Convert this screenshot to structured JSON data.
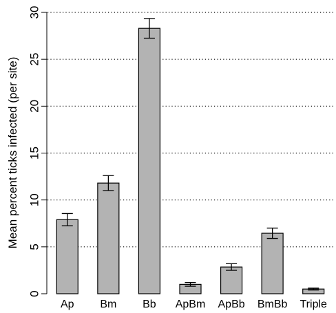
{
  "chart_data": {
    "type": "bar",
    "categories": [
      "Ap",
      "Bm",
      "Bb",
      "ApBm",
      "ApBb",
      "BmBb",
      "Triple"
    ],
    "values": [
      7.9,
      11.8,
      28.3,
      1.0,
      2.85,
      6.45,
      0.5
    ],
    "error": [
      0.65,
      0.8,
      1.05,
      0.2,
      0.35,
      0.55,
      0.1
    ],
    "ylabel": "Mean percent ticks infected (per site)",
    "xlabel": "",
    "title": "",
    "ylim": [
      0,
      30
    ],
    "yticks": [
      0,
      5,
      10,
      15,
      20,
      25,
      30
    ],
    "grid": "dotted horizontal",
    "colors": {
      "bar_fill": "#b3b3b3",
      "bar_stroke": "#000000",
      "grid": "#000000"
    }
  }
}
